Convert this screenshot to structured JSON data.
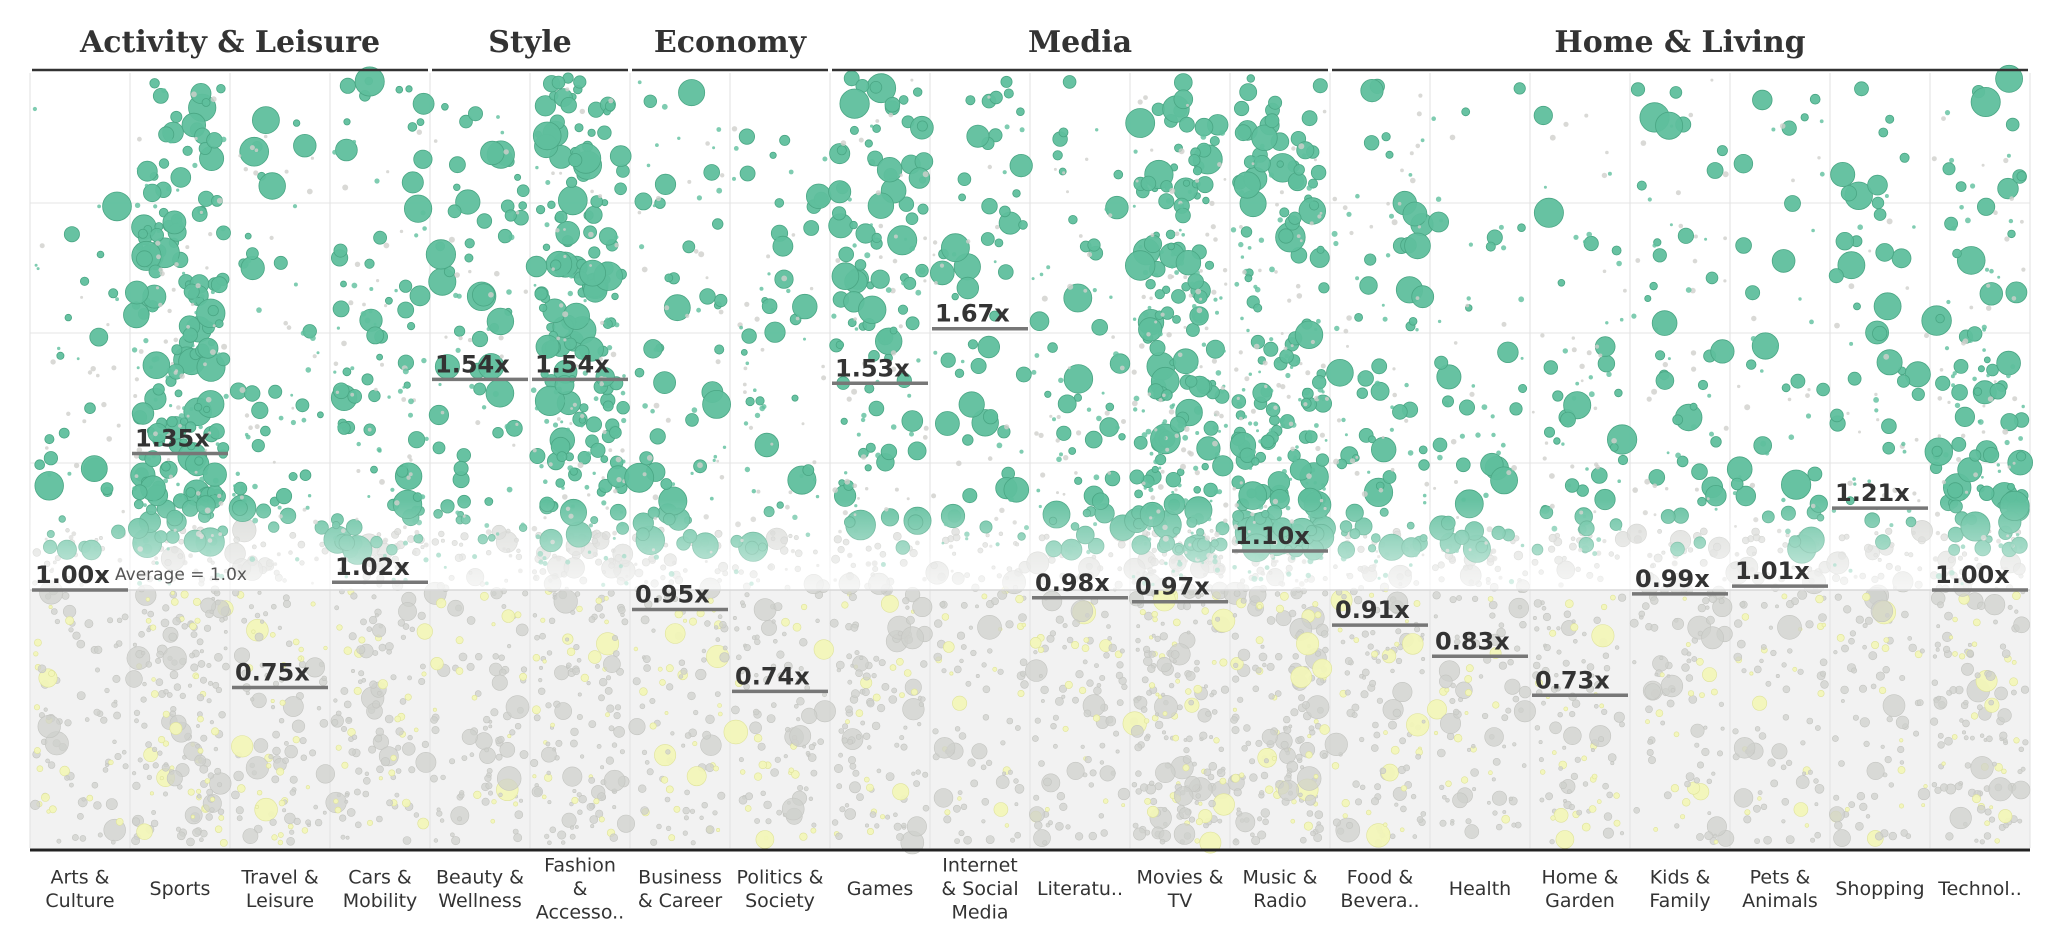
{
  "chart_data": {
    "type": "scatter",
    "title": "",
    "xlabel": "",
    "ylabel": "",
    "baseline": {
      "value": 1.0,
      "label": "Average = 1.0x"
    },
    "colors": {
      "above": "#5fbf9d",
      "below": "#f2f5b8",
      "neutral": "#cfd0cc",
      "shade": "#f2f2f2",
      "marker": "#777777",
      "text": "#333333"
    },
    "groups": [
      {
        "name": "Activity & Leisure",
        "categories": [
          0,
          3
        ]
      },
      {
        "name": "Style",
        "categories": [
          4,
          5
        ]
      },
      {
        "name": "Economy",
        "categories": [
          6,
          7
        ]
      },
      {
        "name": "Media",
        "categories": [
          8,
          12
        ]
      },
      {
        "name": "Home & Living",
        "categories": [
          13,
          19
        ]
      }
    ],
    "categories": [
      {
        "label": [
          "Arts &",
          "Culture"
        ],
        "value": 1.0,
        "value_label": "1.00x",
        "density": 0.35
      },
      {
        "label": [
          "Sports"
        ],
        "value": 1.35,
        "value_label": "1.35x",
        "density": 1.6
      },
      {
        "label": [
          "Travel &",
          "Leisure"
        ],
        "value": 0.75,
        "value_label": "0.75x",
        "density": 0.6
      },
      {
        "label": [
          "Cars &",
          "Mobility"
        ],
        "value": 1.02,
        "value_label": "1.02x",
        "density": 0.9
      },
      {
        "label": [
          "Beauty &",
          "Wellness"
        ],
        "value": 1.54,
        "value_label": "1.54x",
        "density": 0.5
      },
      {
        "label": [
          "Fashion",
          "&",
          "Accesso.."
        ],
        "value": 1.54,
        "value_label": "1.54x",
        "density": 1.3
      },
      {
        "label": [
          "Business",
          "& Career"
        ],
        "value": 0.95,
        "value_label": "0.95x",
        "density": 0.6
      },
      {
        "label": [
          "Politics &",
          "Society"
        ],
        "value": 0.74,
        "value_label": "0.74x",
        "density": 0.6
      },
      {
        "label": [
          "Games"
        ],
        "value": 1.53,
        "value_label": "1.53x",
        "density": 0.8
      },
      {
        "label": [
          "Internet",
          "& Social",
          "Media"
        ],
        "value": 1.67,
        "value_label": "1.67x",
        "density": 0.4
      },
      {
        "label": [
          "Literatu.."
        ],
        "value": 0.98,
        "value_label": "0.98x",
        "density": 0.6
      },
      {
        "label": [
          "Movies &",
          "TV"
        ],
        "value": 0.97,
        "value_label": "0.97x",
        "density": 2.0
      },
      {
        "label": [
          "Music &",
          "Radio"
        ],
        "value": 1.1,
        "value_label": "1.10x",
        "density": 1.8
      },
      {
        "label": [
          "Food &",
          "Bevera.."
        ],
        "value": 0.91,
        "value_label": "0.91x",
        "density": 0.8
      },
      {
        "label": [
          "Health"
        ],
        "value": 0.83,
        "value_label": "0.83x",
        "density": 0.5
      },
      {
        "label": [
          "Home &",
          "Garden"
        ],
        "value": 0.73,
        "value_label": "0.73x",
        "density": 0.6
      },
      {
        "label": [
          "Kids &",
          "Family"
        ],
        "value": 0.99,
        "value_label": "0.99x",
        "density": 0.5
      },
      {
        "label": [
          "Pets &",
          "Animals"
        ],
        "value": 1.01,
        "value_label": "1.01x",
        "density": 0.4
      },
      {
        "label": [
          "Shopping"
        ],
        "value": 1.21,
        "value_label": "1.21x",
        "density": 0.4
      },
      {
        "label": [
          "Technol.."
        ],
        "value": 1.0,
        "value_label": "1.00x",
        "density": 1.0
      }
    ]
  }
}
